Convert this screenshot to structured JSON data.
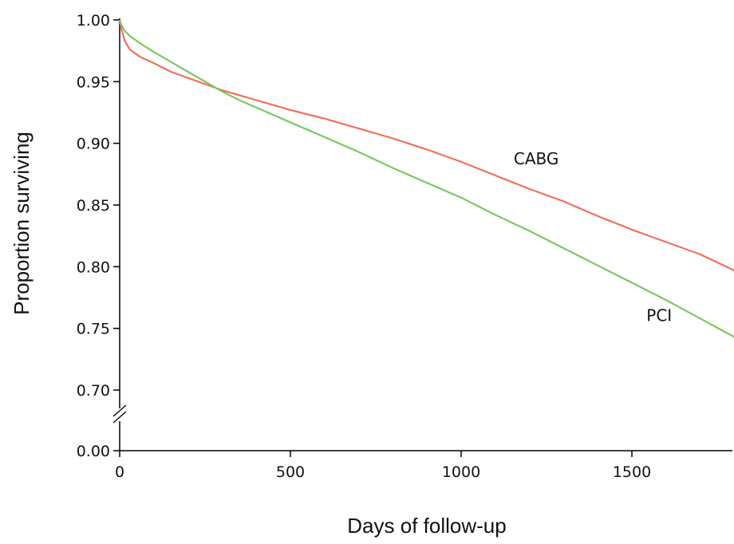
{
  "chart_data": {
    "type": "line",
    "title": "",
    "xlabel": "Days of follow-up",
    "ylabel": "Proportion surviving",
    "xlim": [
      0,
      1800
    ],
    "ylim": [
      0.7,
      1.0
    ],
    "y_axis_break": true,
    "y_break_tick": "0.00",
    "x_ticks": [
      "0",
      "500",
      "1000",
      "1500"
    ],
    "y_ticks": [
      "0.70",
      "0.75",
      "0.80",
      "0.85",
      "0.90",
      "0.95",
      "1.00"
    ],
    "grid": false,
    "legend": "none",
    "series": [
      {
        "name": "CABG",
        "color": "#f07060",
        "x": [
          0,
          5,
          15,
          30,
          60,
          100,
          150,
          200,
          250,
          300,
          350,
          400,
          500,
          600,
          700,
          800,
          900,
          1000,
          1100,
          1200,
          1300,
          1400,
          1500,
          1600,
          1700,
          1800
        ],
        "y": [
          1.0,
          0.993,
          0.983,
          0.976,
          0.97,
          0.965,
          0.958,
          0.953,
          0.948,
          0.943,
          0.939,
          0.935,
          0.927,
          0.92,
          0.912,
          0.904,
          0.895,
          0.885,
          0.874,
          0.863,
          0.853,
          0.841,
          0.83,
          0.82,
          0.81,
          0.797
        ]
      },
      {
        "name": "PCI",
        "color": "#7cc860",
        "x": [
          0,
          5,
          15,
          30,
          60,
          100,
          150,
          200,
          250,
          300,
          350,
          400,
          500,
          600,
          700,
          800,
          900,
          1000,
          1100,
          1200,
          1300,
          1400,
          1500,
          1600,
          1700,
          1800
        ],
        "y": [
          1.0,
          0.996,
          0.991,
          0.987,
          0.981,
          0.974,
          0.966,
          0.958,
          0.95,
          0.942,
          0.935,
          0.929,
          0.917,
          0.905,
          0.893,
          0.88,
          0.868,
          0.856,
          0.842,
          0.829,
          0.815,
          0.801,
          0.787,
          0.773,
          0.758,
          0.743
        ]
      }
    ],
    "annotations": [
      {
        "text": "CABG",
        "x": 1220,
        "y": 0.883
      },
      {
        "text": "PCI",
        "x": 1580,
        "y": 0.756
      }
    ]
  }
}
